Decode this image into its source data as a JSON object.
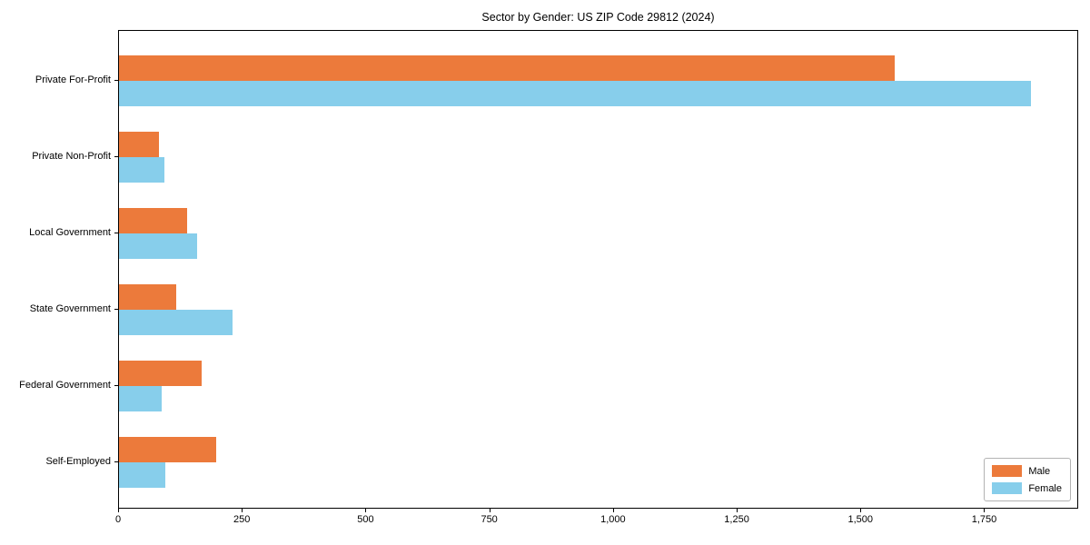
{
  "chart_data": {
    "type": "bar",
    "orientation": "horizontal",
    "title": "Sector by Gender: US ZIP Code 29812 (2024)",
    "categories": [
      "Private For-Profit",
      "Private Non-Profit",
      "Local Government",
      "State Government",
      "Federal Government",
      "Self-Employed"
    ],
    "series": [
      {
        "name": "Male",
        "color": "#ec7a3b",
        "values": [
          1568,
          81,
          138,
          115,
          167,
          196
        ]
      },
      {
        "name": "Female",
        "color": "#87ceeb",
        "values": [
          1843,
          91,
          158,
          230,
          87,
          94
        ]
      }
    ],
    "xlabel": "",
    "ylabel": "",
    "xlim": [
      0,
      1940
    ],
    "xticks": [
      0,
      250,
      500,
      750,
      1000,
      1250,
      1500,
      1750
    ],
    "xtick_labels": [
      "0",
      "250",
      "500",
      "750",
      "1,000",
      "1,250",
      "1,500",
      "1,750"
    ],
    "grid": "off",
    "legend_position": "lower right",
    "frame_color": "#000000",
    "background_color": "#ffffff"
  }
}
